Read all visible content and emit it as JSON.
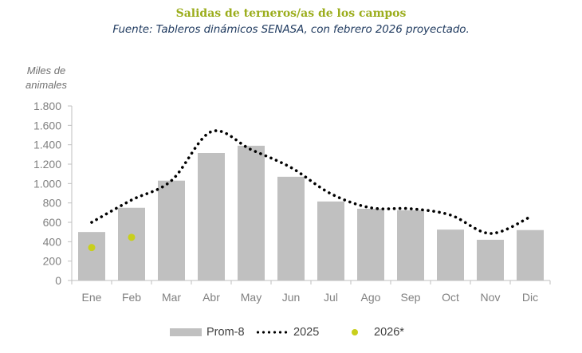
{
  "chart_data": {
    "type": "bar",
    "title": "Salidas de terneros/as de los campos",
    "subtitle": "Fuente: Tableros dinámicos SENASA, con febrero 2026 proyectado.",
    "ylabel_lines": [
      "Miles de",
      "animales"
    ],
    "xlabel": "",
    "ylim": [
      0,
      1800
    ],
    "yticks": [
      0,
      200,
      400,
      600,
      800,
      1000,
      1200,
      1400,
      1600,
      1800
    ],
    "ytick_labels": [
      "0",
      "200",
      "400",
      "600",
      "800",
      "1.000",
      "1.200",
      "1.400",
      "1.600",
      "1.800"
    ],
    "categories": [
      "Ene",
      "Feb",
      "Mar",
      "Abr",
      "May",
      "Jun",
      "Jul",
      "Ago",
      "Sep",
      "Oct",
      "Nov",
      "Dic"
    ],
    "grid": false,
    "legend_position": "bottom",
    "series": [
      {
        "name": "Prom-8",
        "type": "bar",
        "color": "#c0c0c0",
        "values": [
          500,
          750,
          1030,
          1315,
          1390,
          1070,
          815,
          740,
          725,
          525,
          420,
          520
        ]
      },
      {
        "name": "2025",
        "type": "line",
        "style": "dotted",
        "color": "#000000",
        "values": [
          600,
          830,
          1030,
          1535,
          1350,
          1165,
          895,
          750,
          740,
          675,
          485,
          655
        ]
      },
      {
        "name": "2026*",
        "type": "scatter",
        "color": "#c8cf1c",
        "values": [
          340,
          445,
          null,
          null,
          null,
          null,
          null,
          null,
          null,
          null,
          null,
          null
        ]
      }
    ]
  },
  "legend": [
    {
      "label": "Prom-8"
    },
    {
      "label": "2025"
    },
    {
      "label": "2026*"
    }
  ]
}
